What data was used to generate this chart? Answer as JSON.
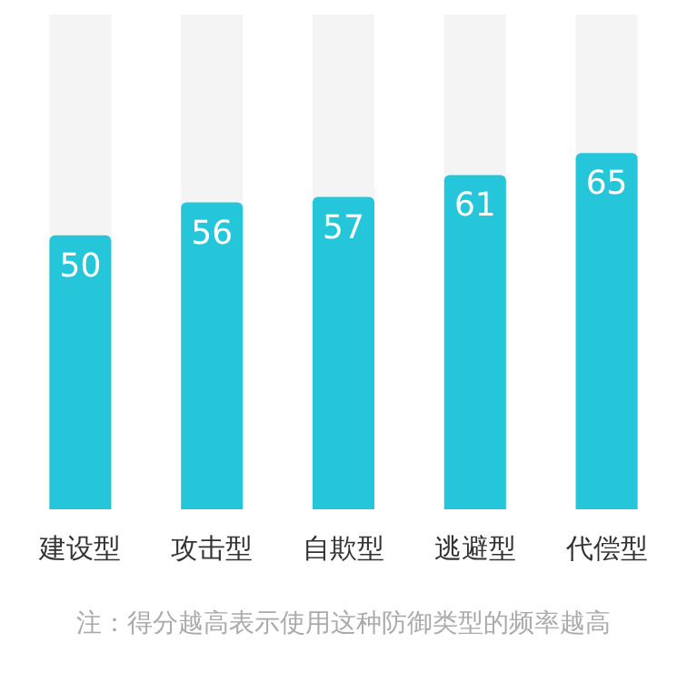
{
  "chart_data": {
    "type": "bar",
    "categories": [
      "建设型",
      "攻击型",
      "自欺型",
      "逃避型",
      "代偿型"
    ],
    "values": [
      50,
      56,
      57,
      61,
      65
    ],
    "color": "#26c6da",
    "data_labels": true,
    "annotations": [
      "注：得分越高表示使用这种防御类型的频率越高"
    ]
  }
}
